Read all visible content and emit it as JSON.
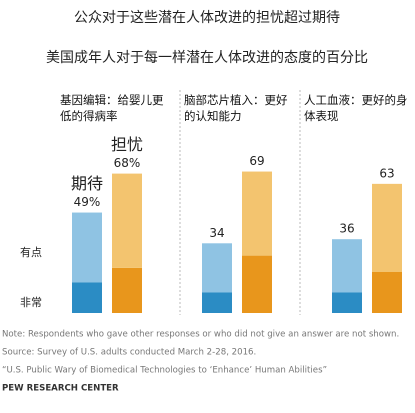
{
  "title": "公众对于这些潜在人体改进的担忧超过期待",
  "subtitle": "美国成年人对于每一样潜在人体改进的态度的百分比",
  "note": "Note: Respondents who gave other responses or who did not give an answer are not shown.",
  "source": "Source: Survey of U.S. adults conducted March 2-28, 2016.",
  "report": "“U.S. Public Wary of Biomedical Technologies to ‘Enhance’ Human Abilities”",
  "org": "PEW RESEARCH CENTER",
  "chart_data": [
    {
      "type": "bar",
      "stacked": true,
      "title": "基因编辑：给婴儿更低的得病率",
      "categories": [
        "期待",
        "担忧"
      ],
      "series": [
        {
          "name": "非常",
          "colors": [
            "#2b8cc4",
            "#e8961c"
          ],
          "values": [
            15,
            22
          ]
        },
        {
          "name": "有点",
          "colors": [
            "#8fc3e3",
            "#f3c46f"
          ],
          "values": [
            34,
            46
          ]
        }
      ],
      "totals": [
        49,
        68
      ],
      "total_labels": [
        "49%",
        "68%"
      ]
    },
    {
      "type": "bar",
      "stacked": true,
      "title": "脑部芯片植入：更好的认知能力",
      "categories": [
        null,
        null
      ],
      "series": [
        {
          "colors": [
            "#2b8cc4",
            "#e8961c"
          ],
          "values": [
            10,
            28
          ]
        },
        {
          "colors": [
            "#8fc3e3",
            "#f3c46f"
          ],
          "values": [
            24,
            41
          ]
        }
      ],
      "totals": [
        34,
        69
      ]
    },
    {
      "type": "bar",
      "stacked": true,
      "title": "人工血液：更好的身体表现",
      "categories": [
        null,
        null
      ],
      "series": [
        {
          "colors": [
            "#2b8cc4",
            "#e8961c"
          ],
          "values": [
            10,
            20
          ]
        },
        {
          "colors": [
            "#8fc3e3",
            "#f3c46f"
          ],
          "values": [
            26,
            43
          ]
        }
      ],
      "totals": [
        36,
        63
      ]
    }
  ]
}
